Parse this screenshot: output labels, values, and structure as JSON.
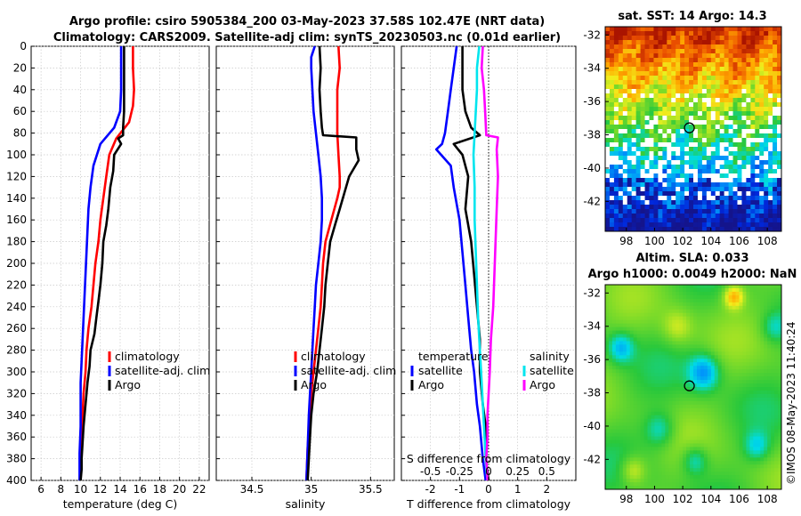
{
  "header": {
    "line1": "Argo profile: csiro 5905384_200 03-May-2023 37.58S 102.47E (NRT data)",
    "line2": "Climatology: CARS2009. Satellite-adj clim: synTS_20230503.nc (0.01d earlier)"
  },
  "side_stamp": "©IMOS 08-May-2023 11:40:24",
  "colors": {
    "climatology": "#ff0000",
    "satellite": "#0000ff",
    "argo": "#000000",
    "cyan": "#00e5ee",
    "magenta": "#ff00ff"
  },
  "chart_data": [
    {
      "id": "temperature",
      "type": "line",
      "xlabel": "temperature (deg C)",
      "ylabel": "",
      "xlim": [
        5,
        23
      ],
      "ylim": [
        400,
        0
      ],
      "xticks": [
        "6",
        "8",
        "10",
        "12",
        "14",
        "16",
        "18",
        "20",
        "22"
      ],
      "yticks": [
        "0",
        "20",
        "40",
        "60",
        "80",
        "100",
        "120",
        "140",
        "160",
        "180",
        "200",
        "220",
        "240",
        "260",
        "280",
        "300",
        "320",
        "340",
        "360",
        "380",
        "400"
      ],
      "grid": true,
      "legend": [
        "climatology",
        "satellite-adj. clim",
        "Argo"
      ],
      "series": [
        {
          "name": "climatology",
          "color": "#ff0000",
          "x": [
            15.3,
            15.3,
            15.4,
            15.3,
            14.9,
            13.6,
            12.9,
            12.6,
            12.3,
            12.0,
            11.8,
            11.5,
            11.3,
            11.1,
            10.8,
            10.6,
            10.5,
            10.3,
            10.2,
            10.1,
            10.0
          ],
          "y": [
            0,
            20,
            40,
            55,
            70,
            85,
            100,
            120,
            140,
            160,
            180,
            200,
            220,
            240,
            260,
            280,
            300,
            320,
            340,
            370,
            400
          ]
        },
        {
          "name": "satellite-adj. clim",
          "color": "#0000ff",
          "x": [
            14.1,
            14.1,
            14.1,
            14.0,
            13.4,
            12.0,
            11.3,
            11.0,
            10.8,
            10.7,
            10.6,
            10.5,
            10.4,
            10.3,
            10.2,
            10.1,
            10.0,
            10.0,
            10.0,
            9.9,
            9.9
          ],
          "y": [
            0,
            20,
            40,
            60,
            75,
            90,
            110,
            130,
            150,
            170,
            190,
            210,
            230,
            250,
            270,
            290,
            310,
            330,
            350,
            375,
            400
          ]
        },
        {
          "name": "Argo",
          "color": "#000000",
          "x": [
            14.4,
            14.4,
            14.4,
            14.4,
            14.3,
            14.3,
            13.8,
            14.1,
            13.4,
            13.3,
            13.0,
            12.8,
            12.6,
            12.3,
            12.2,
            12.0,
            11.8,
            11.6,
            11.4,
            11.0,
            10.9,
            10.7,
            10.6,
            10.4,
            10.3,
            10.2,
            10.1,
            10.1,
            10.0
          ],
          "y": [
            0,
            20,
            40,
            60,
            75,
            82,
            85,
            90,
            100,
            115,
            130,
            150,
            165,
            180,
            200,
            220,
            235,
            250,
            265,
            280,
            295,
            310,
            320,
            340,
            350,
            365,
            380,
            390,
            400
          ]
        }
      ]
    },
    {
      "id": "salinity",
      "type": "line",
      "xlabel": "salinity",
      "xlim": [
        34.2,
        35.7
      ],
      "ylim": [
        400,
        0
      ],
      "xticks": [
        "34.5",
        "35",
        "35.5"
      ],
      "grid": true,
      "legend": [
        "climatology",
        "satellite-adj. clim",
        "Argo"
      ],
      "series": [
        {
          "name": "climatology",
          "color": "#ff0000",
          "x": [
            35.23,
            35.24,
            35.22,
            35.22,
            35.22,
            35.23,
            35.24,
            35.24,
            35.22,
            35.17,
            35.12,
            35.1,
            35.09,
            35.08,
            35.06,
            35.04,
            35.02,
            35.0,
            34.99,
            34.97,
            34.96
          ],
          "y": [
            0,
            20,
            40,
            60,
            80,
            100,
            120,
            130,
            140,
            160,
            180,
            200,
            220,
            240,
            260,
            280,
            300,
            320,
            340,
            370,
            400
          ]
        },
        {
          "name": "satellite-adj. clim",
          "color": "#0000ff",
          "x": [
            35.03,
            35.0,
            35.0,
            35.01,
            35.02,
            35.04,
            35.06,
            35.08,
            35.09,
            35.09,
            35.08,
            35.06,
            35.04,
            35.03,
            35.02,
            35.01,
            35.0,
            34.99,
            34.98,
            34.97,
            34.96
          ],
          "y": [
            0,
            10,
            20,
            40,
            60,
            80,
            100,
            120,
            140,
            160,
            180,
            200,
            220,
            240,
            260,
            280,
            300,
            320,
            340,
            370,
            400
          ]
        },
        {
          "name": "Argo",
          "color": "#000000",
          "x": [
            35.07,
            35.08,
            35.07,
            35.08,
            35.09,
            35.1,
            35.38,
            35.38,
            35.4,
            35.32,
            35.28,
            35.24,
            35.2,
            35.16,
            35.14,
            35.12,
            35.11,
            35.09,
            35.07,
            35.05,
            35.02,
            35.0,
            34.99,
            34.98,
            34.97
          ],
          "y": [
            0,
            20,
            40,
            60,
            75,
            82,
            84,
            95,
            105,
            120,
            135,
            150,
            165,
            180,
            200,
            220,
            240,
            260,
            280,
            300,
            320,
            340,
            360,
            380,
            400
          ]
        }
      ]
    },
    {
      "id": "difference",
      "type": "line",
      "xlabel": "T difference from climatology",
      "xlabel_top": "S difference from climatology",
      "xlim_T": [
        -3,
        3
      ],
      "xlim_S": [
        -0.75,
        0.75
      ],
      "ylim": [
        400,
        0
      ],
      "xticks_T": [
        "-2",
        "-1",
        "0",
        "1",
        "2"
      ],
      "xticks_S": [
        "-0.5",
        "-0.25",
        "0",
        "0.25",
        "0.5"
      ],
      "grid": true,
      "legend_T_title": "temperature",
      "legend_T": [
        "satellite",
        "Argo"
      ],
      "legend_S_title": "salinity",
      "legend_S": [
        "satellite",
        "Argo"
      ],
      "series": [
        {
          "name": "T satellite",
          "color": "#0000ff",
          "axis": "T",
          "x": [
            -1.1,
            -1.2,
            -1.3,
            -1.4,
            -1.5,
            -1.6,
            -1.8,
            -1.3,
            -1.2,
            -1.0,
            -0.9,
            -0.8,
            -0.7,
            -0.6,
            -0.5,
            -0.4,
            -0.3,
            -0.2,
            -0.1
          ],
          "y": [
            0,
            20,
            40,
            60,
            80,
            90,
            95,
            110,
            130,
            160,
            190,
            220,
            250,
            280,
            300,
            330,
            350,
            380,
            400
          ]
        },
        {
          "name": "T Argo",
          "color": "#000000",
          "axis": "T",
          "x": [
            -0.9,
            -0.9,
            -0.9,
            -0.8,
            -0.6,
            -0.3,
            -1.2,
            -0.9,
            -0.7,
            -0.8,
            -0.6,
            -0.5,
            -0.4,
            -0.3,
            -0.3,
            -0.2,
            -0.1,
            -0.1,
            0.0
          ],
          "y": [
            0,
            20,
            40,
            60,
            75,
            82,
            90,
            100,
            120,
            150,
            180,
            210,
            240,
            270,
            300,
            330,
            350,
            380,
            400
          ]
        },
        {
          "name": "S satellite",
          "color": "#00e5ee",
          "axis": "S",
          "x": [
            -0.08,
            -0.1,
            -0.1,
            -0.11,
            -0.12,
            -0.13,
            -0.12,
            -0.12,
            -0.11,
            -0.1,
            -0.09,
            -0.08,
            -0.07,
            -0.06,
            -0.05,
            -0.04,
            -0.03,
            -0.02,
            -0.01
          ],
          "y": [
            0,
            20,
            40,
            60,
            80,
            100,
            130,
            160,
            190,
            220,
            250,
            270,
            290,
            310,
            330,
            350,
            370,
            390,
            400
          ]
        },
        {
          "name": "S Argo",
          "color": "#ff00ff",
          "axis": "S",
          "x": [
            -0.05,
            -0.06,
            -0.04,
            -0.03,
            -0.02,
            0.08,
            0.07,
            0.08,
            0.07,
            0.06,
            0.05,
            0.04,
            0.02,
            0.01,
            0.0,
            -0.01,
            -0.01,
            -0.02,
            -0.01
          ],
          "y": [
            0,
            20,
            40,
            60,
            82,
            84,
            95,
            120,
            150,
            180,
            210,
            240,
            270,
            300,
            320,
            340,
            360,
            380,
            400
          ]
        }
      ]
    },
    {
      "id": "sst_map",
      "type": "heatmap",
      "title": "sat. SST: 14 Argo: 14.3",
      "xlim": [
        96.5,
        109
      ],
      "ylim": [
        -43.8,
        -31.5
      ],
      "xticks": [
        "98",
        "100",
        "102",
        "104",
        "106",
        "108"
      ],
      "yticks": [
        "-32",
        "-34",
        "-36",
        "-38",
        "-40",
        "-42"
      ],
      "marker": {
        "lon": 102.47,
        "lat": -37.58
      }
    },
    {
      "id": "sla_map",
      "type": "heatmap",
      "title": "Altim. SLA: 0.033",
      "subtitle": "Argo h1000: 0.0049 h2000: NaN",
      "xlim": [
        96.5,
        109
      ],
      "ylim": [
        -43.8,
        -31.5
      ],
      "xticks": [
        "98",
        "100",
        "102",
        "104",
        "106",
        "108"
      ],
      "yticks": [
        "-32",
        "-34",
        "-36",
        "-38",
        "-40",
        "-42"
      ],
      "marker": {
        "lon": 102.47,
        "lat": -37.58
      }
    }
  ]
}
